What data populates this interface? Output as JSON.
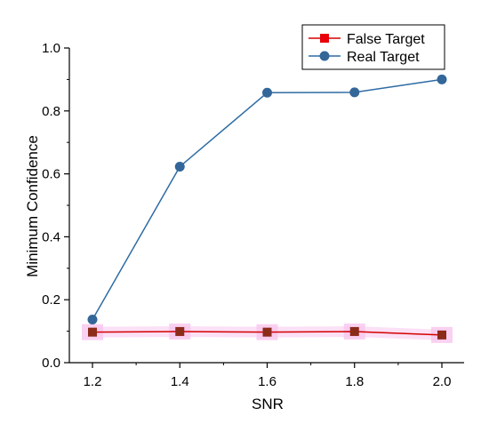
{
  "chart_data": {
    "type": "line",
    "xlabel": "SNR",
    "ylabel": "Minimum Confidence",
    "xlim": [
      1.2,
      2.0
    ],
    "ylim": [
      0.0,
      1.0
    ],
    "x_ticks": [
      "1.2",
      "1.4",
      "1.6",
      "1.8",
      "2.0"
    ],
    "y_ticks": [
      "0.0",
      "0.2",
      "0.4",
      "0.6",
      "0.8",
      "1.0"
    ],
    "grid": false,
    "legend_position": "top-right",
    "series": [
      {
        "name": "False Target",
        "marker": "square",
        "line_color": "#d40000",
        "marker_color": "#e8000b",
        "overlap_marker_color": "#8b2b1a",
        "band_color": "#f7c6ee",
        "x": [
          1.2,
          1.4,
          1.6,
          1.8,
          2.0
        ],
        "y": [
          0.097,
          0.099,
          0.097,
          0.099,
          0.088
        ]
      },
      {
        "name": "Real Target",
        "marker": "circle",
        "line_color": "#2e6ca4",
        "marker_color": "#336699",
        "x": [
          1.2,
          1.4,
          1.6,
          1.8,
          2.0
        ],
        "y": [
          0.137,
          0.623,
          0.858,
          0.859,
          0.9
        ]
      }
    ]
  }
}
